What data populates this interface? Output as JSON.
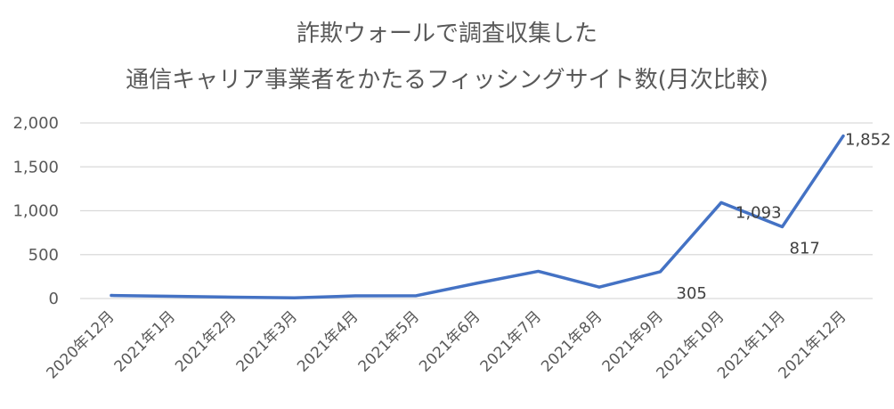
{
  "chart_data": {
    "type": "line",
    "title_lines": [
      "詐欺ウォールで調査収集した",
      "通信キャリア事業者をかたるフィッシングサイト数(月次比較)"
    ],
    "xlabel": "",
    "ylabel": "",
    "categories": [
      "2020年12月",
      "2021年1月",
      "2021年2月",
      "2021年3月",
      "2021年4月",
      "2021年5月",
      "2021年6月",
      "2021年7月",
      "2021年8月",
      "2021年9月",
      "2021年10月",
      "2021年11月",
      "2021年12月"
    ],
    "series": [
      {
        "values": [
          35,
          25,
          15,
          8,
          30,
          32,
          175,
          310,
          130,
          305,
          1093,
          817,
          1852
        ],
        "color": "#4472c4"
      }
    ],
    "data_labels": [
      {
        "index": 9,
        "text": "305"
      },
      {
        "index": 10,
        "text": "1,093"
      },
      {
        "index": 11,
        "text": "817"
      },
      {
        "index": 12,
        "text": "1,852"
      }
    ],
    "ylim": [
      0,
      2000
    ],
    "yticks": [
      0,
      500,
      1000,
      1500,
      2000
    ],
    "ytick_labels": [
      "0",
      "500",
      "1,000",
      "1,500",
      "2,000"
    ],
    "grid": true,
    "legend": "none",
    "colors": {
      "line": "#4472c4",
      "grid": "#d9d9d9",
      "text": "#595959"
    }
  }
}
